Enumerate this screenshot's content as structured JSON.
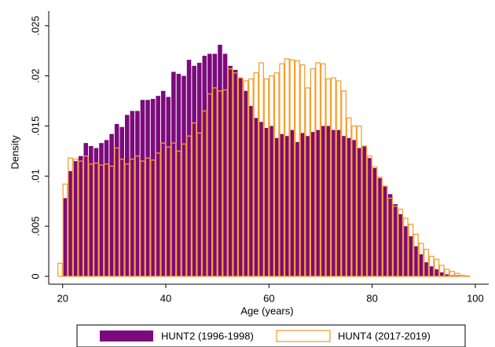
{
  "chart_data": {
    "type": "histogram",
    "xlabel": "Age (years)",
    "ylabel": "Density",
    "xlim": [
      17.3,
      102.6
    ],
    "ylim": [
      0,
      0.026
    ],
    "xticks": [
      20,
      40,
      60,
      80,
      100
    ],
    "yticks": [
      0,
      {
        "value": 0.005,
        "label": ".005"
      },
      {
        "value": 0.01,
        "label": ".01"
      },
      {
        "value": 0.015,
        "label": ".015"
      },
      {
        "value": 0.02,
        "label": ".02"
      },
      {
        "value": 0.025,
        "label": ".025"
      }
    ],
    "legend": "bottom",
    "series": [
      {
        "name": "HUNT2 (1996-1998)",
        "color": "#7b0a7d",
        "fill": true,
        "bins": [
          20,
          21,
          22,
          23,
          24,
          25,
          26,
          27,
          28,
          29,
          30,
          31,
          32,
          33,
          34,
          35,
          36,
          37,
          38,
          39,
          40,
          41,
          42,
          43,
          44,
          45,
          46,
          47,
          48,
          49,
          50,
          51,
          52,
          53,
          54,
          55,
          56,
          57,
          58,
          59,
          60,
          61,
          62,
          63,
          64,
          65,
          66,
          67,
          68,
          69,
          70,
          71,
          72,
          73,
          74,
          75,
          76,
          77,
          78,
          79,
          80,
          81,
          82,
          83,
          84,
          85,
          86,
          87,
          88,
          89,
          90,
          91,
          92,
          93,
          94,
          95,
          96,
          97,
          98,
          99,
          100
        ],
        "values": [
          0.0078,
          0.0105,
          0.0115,
          0.012,
          0.0133,
          0.013,
          0.0128,
          0.0133,
          0.0136,
          0.0142,
          0.0152,
          0.0149,
          0.0161,
          0.0165,
          0.0165,
          0.0176,
          0.0176,
          0.0177,
          0.018,
          0.0185,
          0.0179,
          0.0204,
          0.0202,
          0.02,
          0.0216,
          0.021,
          0.0213,
          0.022,
          0.0222,
          0.0222,
          0.0231,
          0.0222,
          0.021,
          0.0206,
          0.0198,
          0.0185,
          0.017,
          0.0158,
          0.0154,
          0.0148,
          0.015,
          0.0138,
          0.0142,
          0.014,
          0.0146,
          0.0134,
          0.0143,
          0.014,
          0.0144,
          0.0146,
          0.015,
          0.015,
          0.0146,
          0.0146,
          0.014,
          0.0138,
          0.0136,
          0.0128,
          0.013,
          0.0118,
          0.0108,
          0.0098,
          0.009,
          0.0082,
          0.0072,
          0.0062,
          0.005,
          0.004,
          0.003,
          0.0022,
          0.0014,
          0.001,
          0.0007,
          0.0004,
          0.0002,
          0.0001,
          0.0001,
          5e-05,
          5e-05,
          0
        ]
      },
      {
        "name": "HUNT4 (2017-2019)",
        "color": "#f5a032",
        "fill": false,
        "bins": [
          19,
          20,
          21,
          22,
          23,
          24,
          25,
          26,
          27,
          28,
          29,
          30,
          31,
          32,
          33,
          34,
          35,
          36,
          37,
          38,
          39,
          40,
          41,
          42,
          43,
          44,
          45,
          46,
          47,
          48,
          49,
          50,
          51,
          52,
          53,
          54,
          55,
          56,
          57,
          58,
          59,
          60,
          61,
          62,
          63,
          64,
          65,
          66,
          67,
          68,
          69,
          70,
          71,
          72,
          73,
          74,
          75,
          76,
          77,
          78,
          79,
          80,
          81,
          82,
          83,
          84,
          85,
          86,
          87,
          88,
          89,
          90,
          91,
          92,
          93,
          94,
          95,
          96,
          97,
          98,
          99,
          100
        ],
        "values": [
          0.0013,
          0.0092,
          0.0118,
          0.0117,
          0.0115,
          0.012,
          0.0112,
          0.0113,
          0.0111,
          0.0112,
          0.011,
          0.0128,
          0.0117,
          0.0112,
          0.0117,
          0.012,
          0.0115,
          0.0118,
          0.0116,
          0.0123,
          0.0133,
          0.0129,
          0.0133,
          0.0125,
          0.0132,
          0.014,
          0.0153,
          0.0143,
          0.0165,
          0.0182,
          0.0188,
          0.0185,
          0.0186,
          0.0207,
          0.0203,
          0.0198,
          0.0195,
          0.0197,
          0.0203,
          0.0213,
          0.0197,
          0.02,
          0.0203,
          0.0212,
          0.0217,
          0.0216,
          0.0215,
          0.0211,
          0.0188,
          0.0207,
          0.0213,
          0.0212,
          0.0197,
          0.0198,
          0.0195,
          0.0185,
          0.0158,
          0.015,
          0.015,
          0.013,
          0.012,
          0.0109,
          0.0099,
          0.009,
          0.0078,
          0.007,
          0.0067,
          0.0058,
          0.0052,
          0.0042,
          0.0033,
          0.0027,
          0.002,
          0.0017,
          0.0011,
          0.0007,
          0.0005,
          0.0003,
          0.0001,
          5e-05,
          0
        ]
      }
    ]
  }
}
